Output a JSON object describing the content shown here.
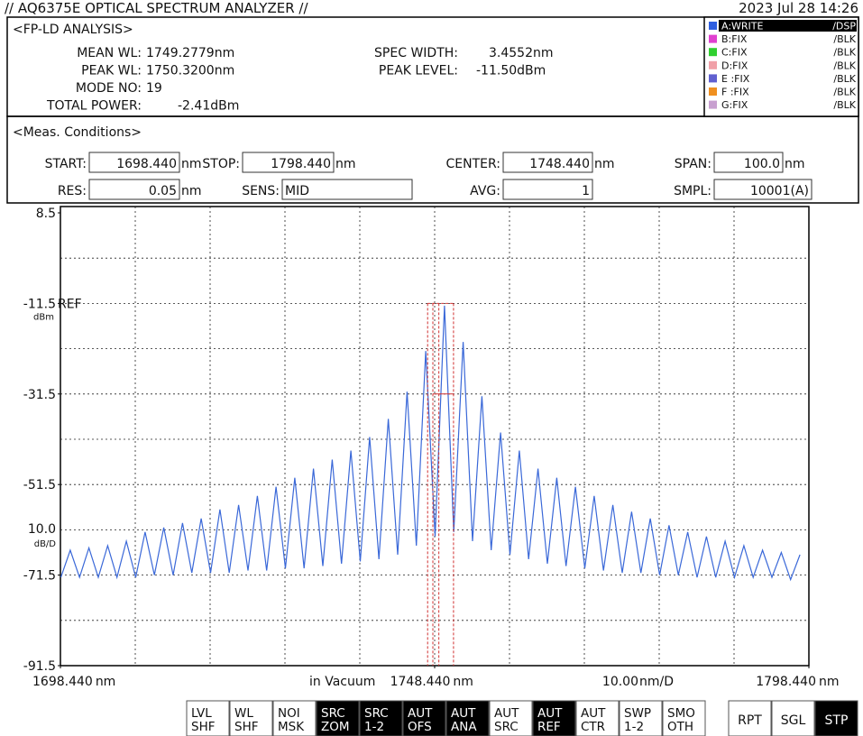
{
  "header": {
    "title": "// AQ6375E OPTICAL SPECTRUM ANALYZER //",
    "datetime": "2023 Jul 28 14:26"
  },
  "analysis": {
    "title": "<FP-LD ANALYSIS>",
    "left": [
      {
        "label": "MEAN WL:",
        "value": "1749.2779nm"
      },
      {
        "label": "PEAK WL:",
        "value": "1750.3200nm"
      },
      {
        "label": "MODE NO:",
        "value": "19"
      },
      {
        "label": "TOTAL POWER:",
        "value": "-2.41dBm"
      }
    ],
    "right": [
      {
        "label": "SPEC WIDTH:",
        "value": "3.4552nm"
      },
      {
        "label": "PEAK LEVEL:",
        "value": "-11.50dBm"
      }
    ]
  },
  "traces": [
    {
      "name": "A:WRITE",
      "state": "/DSP",
      "color": "#2f5fe0",
      "active": true
    },
    {
      "name": "B:FIX",
      "state": "/BLK",
      "color": "#e040d0",
      "active": false
    },
    {
      "name": "C:FIX",
      "state": "/BLK",
      "color": "#30d030",
      "active": false
    },
    {
      "name": "D:FIX",
      "state": "/BLK",
      "color": "#f0a0a8",
      "active": false
    },
    {
      "name": "E :FIX",
      "state": "/BLK",
      "color": "#6060d0",
      "active": false
    },
    {
      "name": "F :FIX",
      "state": "/BLK",
      "color": "#f09020",
      "active": false
    },
    {
      "name": "G:FIX",
      "state": "/BLK",
      "color": "#c8a0d0",
      "active": false
    }
  ],
  "conditions": {
    "title": "<Meas. Conditions>",
    "fields": [
      {
        "label": "START:",
        "value": "1698.440",
        "unit": "nm"
      },
      {
        "label": "STOP:",
        "value": "1798.440",
        "unit": "nm"
      },
      {
        "label": "CENTER:",
        "value": "1748.440",
        "unit": "nm"
      },
      {
        "label": "SPAN:",
        "value": "100.0",
        "unit": "nm"
      },
      {
        "label": "RES:",
        "value": "0.05",
        "unit": "nm"
      },
      {
        "label": "SENS:",
        "value": "MID"
      },
      {
        "label": "AVG:",
        "value": "1"
      },
      {
        "label": "SMPL:",
        "value": "10001(A)"
      }
    ]
  },
  "chart_data": {
    "type": "line",
    "color": "#3a68d8",
    "x": [
      1698.5,
      1699.75,
      1701,
      1702.25,
      1703.5,
      1704.75,
      1706,
      1707.25,
      1708.5,
      1709.75,
      1711,
      1712.25,
      1713.5,
      1714.75,
      1716,
      1717.25,
      1718.5,
      1719.75,
      1721,
      1722.25,
      1723.5,
      1724.75,
      1726,
      1727.25,
      1728.5,
      1729.75,
      1731,
      1732.25,
      1733.5,
      1734.75,
      1736,
      1737.25,
      1738.5,
      1739.75,
      1741,
      1742.25,
      1743.5,
      1744.75,
      1746,
      1747.25,
      1748.5,
      1749.75,
      1751,
      1752.25,
      1753.5,
      1754.75,
      1756,
      1757.25,
      1758.5,
      1759.75,
      1761,
      1762.25,
      1763.5,
      1764.75,
      1766,
      1767.25,
      1768.5,
      1769.75,
      1771,
      1772.25,
      1773.5,
      1774.75,
      1776,
      1777.25,
      1778.5,
      1779.75,
      1781,
      1782.25,
      1783.5,
      1784.75,
      1786,
      1787.25,
      1788.5,
      1789.75,
      1791,
      1792.25,
      1793.5,
      1794.75,
      1796,
      1797.25
    ],
    "values": [
      -72,
      -66,
      -72,
      -65.5,
      -72,
      -65,
      -72,
      -64,
      -72,
      -62,
      -71.5,
      -61,
      -71.5,
      -60,
      -71,
      -59,
      -71,
      -57,
      -71,
      -56,
      -70.5,
      -54,
      -70.5,
      -52,
      -70,
      -50,
      -70,
      -48,
      -69.5,
      -46,
      -69,
      -44,
      -68.5,
      -41,
      -68,
      -37,
      -67,
      -31,
      -65,
      -22,
      -63,
      -12,
      -62,
      -20,
      -64,
      -32,
      -66,
      -40,
      -67,
      -44,
      -68,
      -48,
      -69,
      -50,
      -69.5,
      -52,
      -70,
      -54,
      -70.5,
      -56,
      -71,
      -57.5,
      -71,
      -59,
      -71.5,
      -60.5,
      -71.5,
      -62,
      -72,
      -63,
      -72,
      -64,
      -72,
      -65,
      -72,
      -66,
      -72,
      -66.5,
      -72.5,
      -67
    ],
    "xlim": [
      1698.44,
      1798.44
    ],
    "ylim": [
      -91.5,
      8.5
    ],
    "xticks": [
      {
        "value": 1698.44,
        "label": "1698.440"
      },
      {
        "value": 1748.44,
        "label": "1748.440"
      },
      {
        "value": 1798.44,
        "label": "1798.440"
      }
    ],
    "x_unit": "nm",
    "xdiv": {
      "value": 10,
      "label": "10.00"
    },
    "xdiv_unit": "nm/D",
    "x_note": "in Vacuum",
    "yticks": [
      8.5,
      -11.5,
      -31.5,
      -51.5,
      -71.5,
      -91.5
    ],
    "ref_label": "REF",
    "y_unit": "dBm",
    "ydiv": {
      "value": 10,
      "label": "10.0"
    },
    "ydiv_unit": "dB/D",
    "markers": {
      "x": [
        1747.5,
        1748.2,
        1749.0,
        1750.96
      ],
      "level": -11.5,
      "threshold": -31.5,
      "color": "#d03030"
    },
    "grid": true
  },
  "softkeys": [
    {
      "lines": [
        "LVL",
        "SHF"
      ],
      "active": false
    },
    {
      "lines": [
        "WL",
        "SHF"
      ],
      "active": false
    },
    {
      "lines": [
        "NOI",
        "MSK"
      ],
      "active": false
    },
    {
      "lines": [
        "SRC",
        "ZOM"
      ],
      "active": true
    },
    {
      "lines": [
        "SRC",
        "1-2"
      ],
      "active": true
    },
    {
      "lines": [
        "AUT",
        "OFS"
      ],
      "active": true
    },
    {
      "lines": [
        "AUT",
        "ANA"
      ],
      "active": true
    },
    {
      "lines": [
        "AUT",
        "SRC"
      ],
      "active": false
    },
    {
      "lines": [
        "AUT",
        "REF"
      ],
      "active": true
    },
    {
      "lines": [
        "AUT",
        "CTR"
      ],
      "active": false
    },
    {
      "lines": [
        "SWP",
        "1-2"
      ],
      "active": false
    },
    {
      "lines": [
        "SMO",
        "OTH"
      ],
      "active": false
    }
  ],
  "runkeys": [
    {
      "label": "RPT",
      "active": false
    },
    {
      "label": "SGL",
      "active": false
    },
    {
      "label": "STP",
      "active": true
    }
  ]
}
